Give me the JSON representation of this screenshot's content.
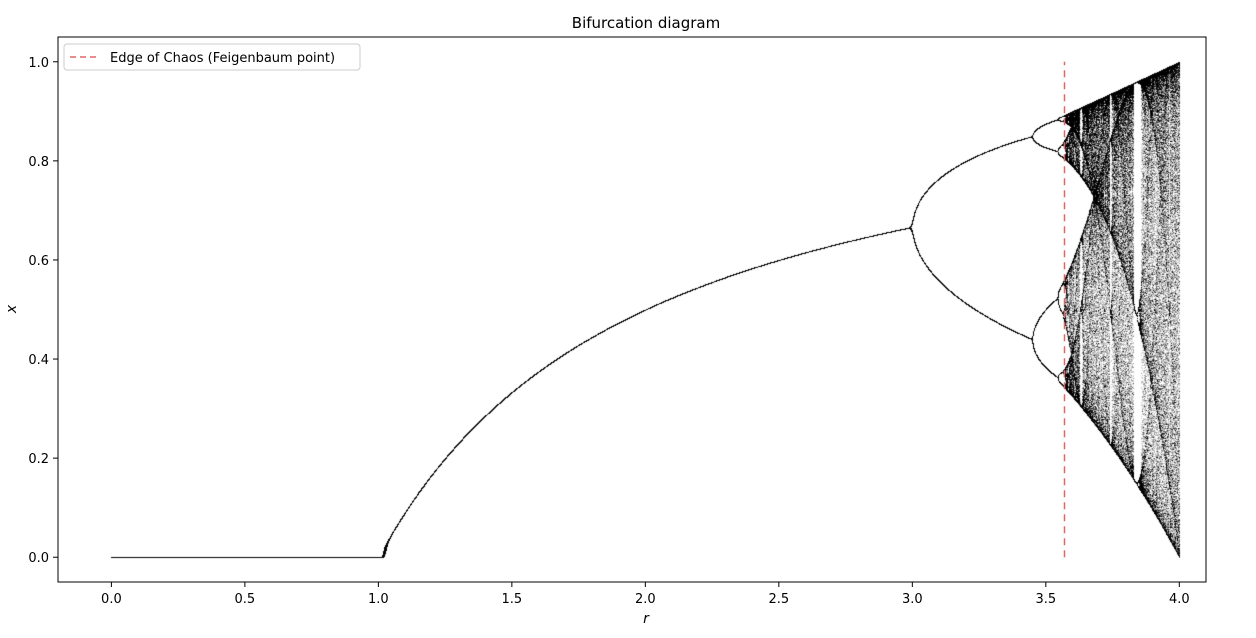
{
  "chart_data": {
    "type": "scatter",
    "title": "Bifurcation diagram",
    "xlabel": "r",
    "ylabel": "x",
    "xlim": [
      -0.2,
      4.1
    ],
    "ylim": [
      -0.05,
      1.05
    ],
    "x_ticks": [
      0.0,
      0.5,
      1.0,
      1.5,
      2.0,
      2.5,
      3.0,
      3.5,
      4.0
    ],
    "x_tick_labels": [
      "0.0",
      "0.5",
      "1.0",
      "1.5",
      "2.0",
      "2.5",
      "3.0",
      "3.5",
      "4.0"
    ],
    "y_ticks": [
      0.0,
      0.2,
      0.4,
      0.6,
      0.8,
      1.0
    ],
    "y_tick_labels": [
      "0.0",
      "0.2",
      "0.4",
      "0.6",
      "0.8",
      "1.0"
    ],
    "grid": false,
    "legend_position": "top-left",
    "series": [
      {
        "kind": "scatter",
        "color": "#000000",
        "map": "logistic x(n+1) = r·x(n)·(1−x(n))",
        "r_range": [
          0.0,
          4.0
        ],
        "points": [
          {
            "r": 0.0,
            "x": [
              0.0
            ]
          },
          {
            "r": 1.0,
            "x": [
              0.0
            ]
          },
          {
            "r": 1.5,
            "x": [
              0.333
            ]
          },
          {
            "r": 2.0,
            "x": [
              0.5
            ]
          },
          {
            "r": 2.5,
            "x": [
              0.6
            ]
          },
          {
            "r": 3.0,
            "x": [
              0.667
            ]
          },
          {
            "r": 3.2,
            "x": [
              0.513,
              0.799
            ]
          },
          {
            "r": 3.449,
            "x": [
              0.44,
              0.852
            ]
          },
          {
            "r": 3.5,
            "x": [
              0.383,
              0.501,
              0.827,
              0.875
            ]
          },
          {
            "r": 3.57,
            "x": [
              0.34,
              0.89
            ]
          },
          {
            "r": 3.83,
            "x": [
              0.156,
              0.505,
              0.957
            ]
          },
          {
            "r": 4.0,
            "x": [
              0.0,
              1.0
            ]
          }
        ]
      },
      {
        "name": "Edge of Chaos (Feigenbaum point)",
        "kind": "vline",
        "x": 3.56995,
        "y_range": [
          0.0,
          1.0
        ],
        "color": "#e06666",
        "style": "dashed"
      }
    ]
  }
}
